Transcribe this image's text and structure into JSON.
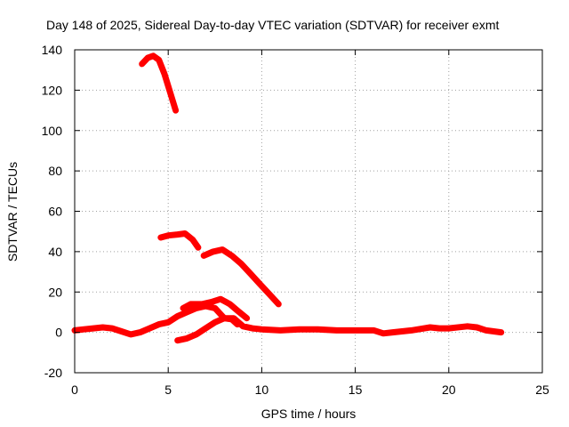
{
  "chart_data": {
    "type": "line",
    "title": "Day 148 of 2025, Sidereal Day-to-day VTEC variation (SDTVAR) for receiver exmt",
    "xlabel": "GPS time / hours",
    "ylabel": "SDTVAR / TECUs",
    "xlim": [
      0,
      25
    ],
    "ylim": [
      -20,
      140
    ],
    "xticks": [
      0,
      5,
      10,
      15,
      20,
      25
    ],
    "yticks": [
      -20,
      0,
      20,
      40,
      60,
      80,
      100,
      120,
      140
    ],
    "grid": true,
    "color": "#ff0000",
    "series": [
      {
        "name": "main-baseline",
        "points": [
          [
            0,
            1
          ],
          [
            0.5,
            1.5
          ],
          [
            1,
            2
          ],
          [
            1.5,
            2.5
          ],
          [
            2,
            2
          ],
          [
            2.5,
            0.5
          ],
          [
            3,
            -1
          ],
          [
            3.5,
            0
          ],
          [
            4,
            2
          ],
          [
            4.5,
            4
          ],
          [
            5,
            5
          ],
          [
            5.5,
            8
          ],
          [
            6,
            10
          ],
          [
            6.5,
            12
          ],
          [
            7,
            13
          ],
          [
            7.5,
            12
          ],
          [
            8,
            7
          ],
          [
            8.5,
            7
          ],
          [
            9,
            3
          ],
          [
            9.5,
            2
          ],
          [
            10,
            1.5
          ],
          [
            11,
            1
          ],
          [
            12,
            1.5
          ],
          [
            13,
            1.5
          ],
          [
            14,
            1
          ],
          [
            15,
            1
          ],
          [
            16,
            1
          ],
          [
            16.5,
            -0.5
          ],
          [
            17,
            0
          ],
          [
            18,
            1
          ],
          [
            19,
            2.5
          ],
          [
            19.5,
            2
          ],
          [
            20,
            2
          ],
          [
            21,
            3
          ],
          [
            21.5,
            2.5
          ],
          [
            22,
            1
          ],
          [
            22.8,
            0
          ]
        ]
      },
      {
        "name": "bump-segment",
        "points": [
          [
            5.8,
            12
          ],
          [
            6.2,
            14
          ],
          [
            6.8,
            14
          ],
          [
            7.3,
            15
          ],
          [
            7.8,
            16.5
          ],
          [
            8.3,
            14
          ],
          [
            8.8,
            10
          ],
          [
            9.2,
            7
          ]
        ]
      },
      {
        "name": "rising-segment",
        "points": [
          [
            5.5,
            -4
          ],
          [
            6,
            -3
          ],
          [
            6.5,
            -1
          ],
          [
            7,
            2
          ],
          [
            7.5,
            5
          ],
          [
            8,
            7
          ],
          [
            8.4,
            6.5
          ],
          [
            8.7,
            4
          ]
        ]
      },
      {
        "name": "mid-arc-a",
        "points": [
          [
            4.6,
            47
          ],
          [
            5,
            48
          ],
          [
            5.5,
            48.5
          ],
          [
            5.9,
            49
          ],
          [
            6.3,
            46
          ],
          [
            6.6,
            42
          ]
        ]
      },
      {
        "name": "mid-arc-b",
        "points": [
          [
            6.9,
            38
          ],
          [
            7.4,
            40
          ],
          [
            7.9,
            41
          ],
          [
            8.4,
            38
          ],
          [
            8.9,
            34
          ],
          [
            9.4,
            29
          ],
          [
            9.9,
            24
          ],
          [
            10.4,
            19
          ],
          [
            10.9,
            14
          ]
        ]
      },
      {
        "name": "high-arc",
        "points": [
          [
            3.6,
            133
          ],
          [
            3.9,
            136
          ],
          [
            4.2,
            137
          ],
          [
            4.5,
            135
          ],
          [
            4.8,
            128
          ],
          [
            5.1,
            119
          ],
          [
            5.4,
            110
          ]
        ]
      }
    ]
  }
}
